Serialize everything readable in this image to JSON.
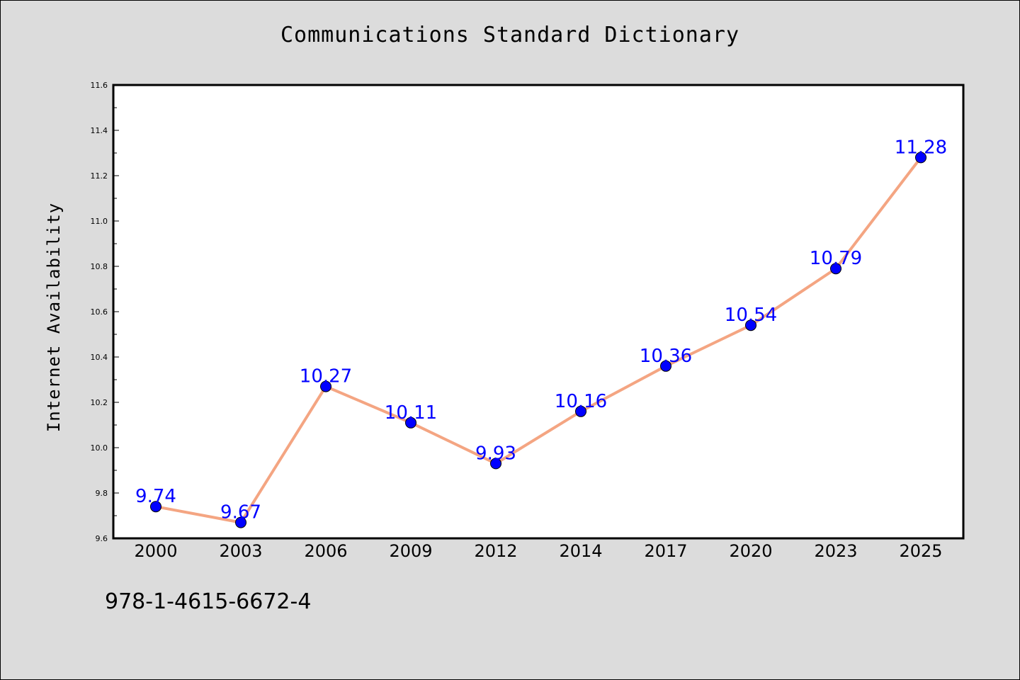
{
  "chart_data": {
    "type": "line",
    "title": "Communications Standard Dictionary",
    "xlabel": "",
    "ylabel": "Internet Availability",
    "categories": [
      "2000",
      "2003",
      "2006",
      "2009",
      "2012",
      "2014",
      "2017",
      "2020",
      "2023",
      "2025"
    ],
    "series": [
      {
        "values": [
          9.74,
          9.67,
          10.27,
          10.11,
          9.93,
          10.16,
          10.36,
          10.54,
          10.79,
          11.28
        ],
        "line_color": "#f4a582",
        "marker_color": "#0000ff"
      }
    ],
    "data_labels": [
      "9.74",
      "9.67",
      "10.27",
      "10.11",
      "9.93",
      "10.16",
      "10.36",
      "10.54",
      "10.79",
      "11.28"
    ],
    "ylim": [
      9.6,
      11.6
    ],
    "yticks": [
      "9.6",
      "9.8",
      "10.0",
      "10.2",
      "10.4",
      "10.6",
      "10.8",
      "11.0",
      "11.2",
      "11.4",
      "11.6"
    ],
    "grid": false,
    "legend": "none"
  },
  "footer": {
    "isbn": "978-1-4615-6672-4"
  },
  "colors": {
    "background": "#dcdcdc",
    "plot_background": "#ffffff",
    "line": "#f4a582",
    "marker": "#0000ff",
    "label": "#0000ff"
  }
}
